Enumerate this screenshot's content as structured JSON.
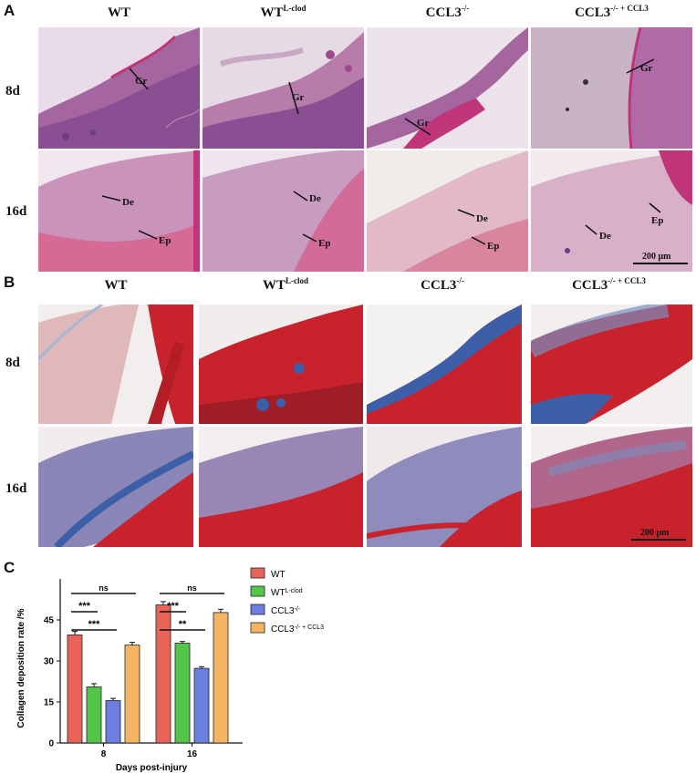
{
  "panels": {
    "A": {
      "letter": "A",
      "columns": [
        {
          "main": "WT",
          "sup": ""
        },
        {
          "main": "WT",
          "sup": "L-clod"
        },
        {
          "main": "CCL3",
          "sup": "-/-"
        },
        {
          "main": "CCL3",
          "sup": "-/- + CCL3"
        }
      ],
      "rows": [
        "8d",
        "16d"
      ],
      "labels": {
        "gr": "Gr",
        "de": "De",
        "ep": "Ep"
      },
      "scale_bar": "200 μm"
    },
    "B": {
      "letter": "B",
      "columns": [
        {
          "main": "WT",
          "sup": ""
        },
        {
          "main": "WT",
          "sup": "L-clod"
        },
        {
          "main": "CCL3",
          "sup": "-/-"
        },
        {
          "main": "CCL3",
          "sup": "-/- + CCL3"
        }
      ],
      "rows": [
        "8d",
        "16d"
      ],
      "scale_bar": "200 μm"
    },
    "C": {
      "letter": "C"
    }
  },
  "colors": {
    "he_background": "#d9b8d6",
    "he_tissue": "#a5669f",
    "he_dark": "#6e3b87",
    "masson_red": "#c8232c",
    "masson_blue": "#3c5fa8",
    "wt_bar": "#e8645a",
    "wtlclod_bar": "#54c44a",
    "ccl3ko_bar": "#6b7fe0",
    "ccl3rescue_bar": "#f5b464"
  },
  "chart_data": {
    "type": "bar",
    "categories": [
      "8",
      "16"
    ],
    "xlabel": "Days post-injury",
    "ylabel": "Collagen deposition rate /%",
    "ylim": [
      0,
      60
    ],
    "yticks": [
      0,
      15,
      30,
      45
    ],
    "series": [
      {
        "name": "WT",
        "sup": "",
        "values": [
          39.5,
          50.5
        ],
        "errors": [
          1.3,
          1.2
        ],
        "color": "#e8645a"
      },
      {
        "name": "WT",
        "sup": "L-clod",
        "values": [
          20.5,
          36.5
        ],
        "errors": [
          1.2,
          0.6
        ],
        "color": "#54c44a"
      },
      {
        "name": "CCL3",
        "sup": "-/-",
        "values": [
          15.5,
          27.3
        ],
        "errors": [
          0.8,
          0.6
        ],
        "color": "#6b7fe0"
      },
      {
        "name": "CCL3",
        "sup": "-/- + CCL3",
        "values": [
          35.8,
          47.7
        ],
        "errors": [
          1.0,
          1.2
        ],
        "color": "#f5b464"
      }
    ],
    "significance": [
      {
        "group": "8",
        "from": 0,
        "to": 3,
        "label": "ns"
      },
      {
        "group": "8",
        "from": 0,
        "to": 1,
        "label": "***"
      },
      {
        "group": "8",
        "from": 0,
        "to": 2,
        "label": "***"
      },
      {
        "group": "16",
        "from": 0,
        "to": 3,
        "label": "ns"
      },
      {
        "group": "16",
        "from": 0,
        "to": 1,
        "label": "***"
      },
      {
        "group": "16",
        "from": 0,
        "to": 2,
        "label": "**"
      }
    ],
    "legend_position": "right"
  }
}
